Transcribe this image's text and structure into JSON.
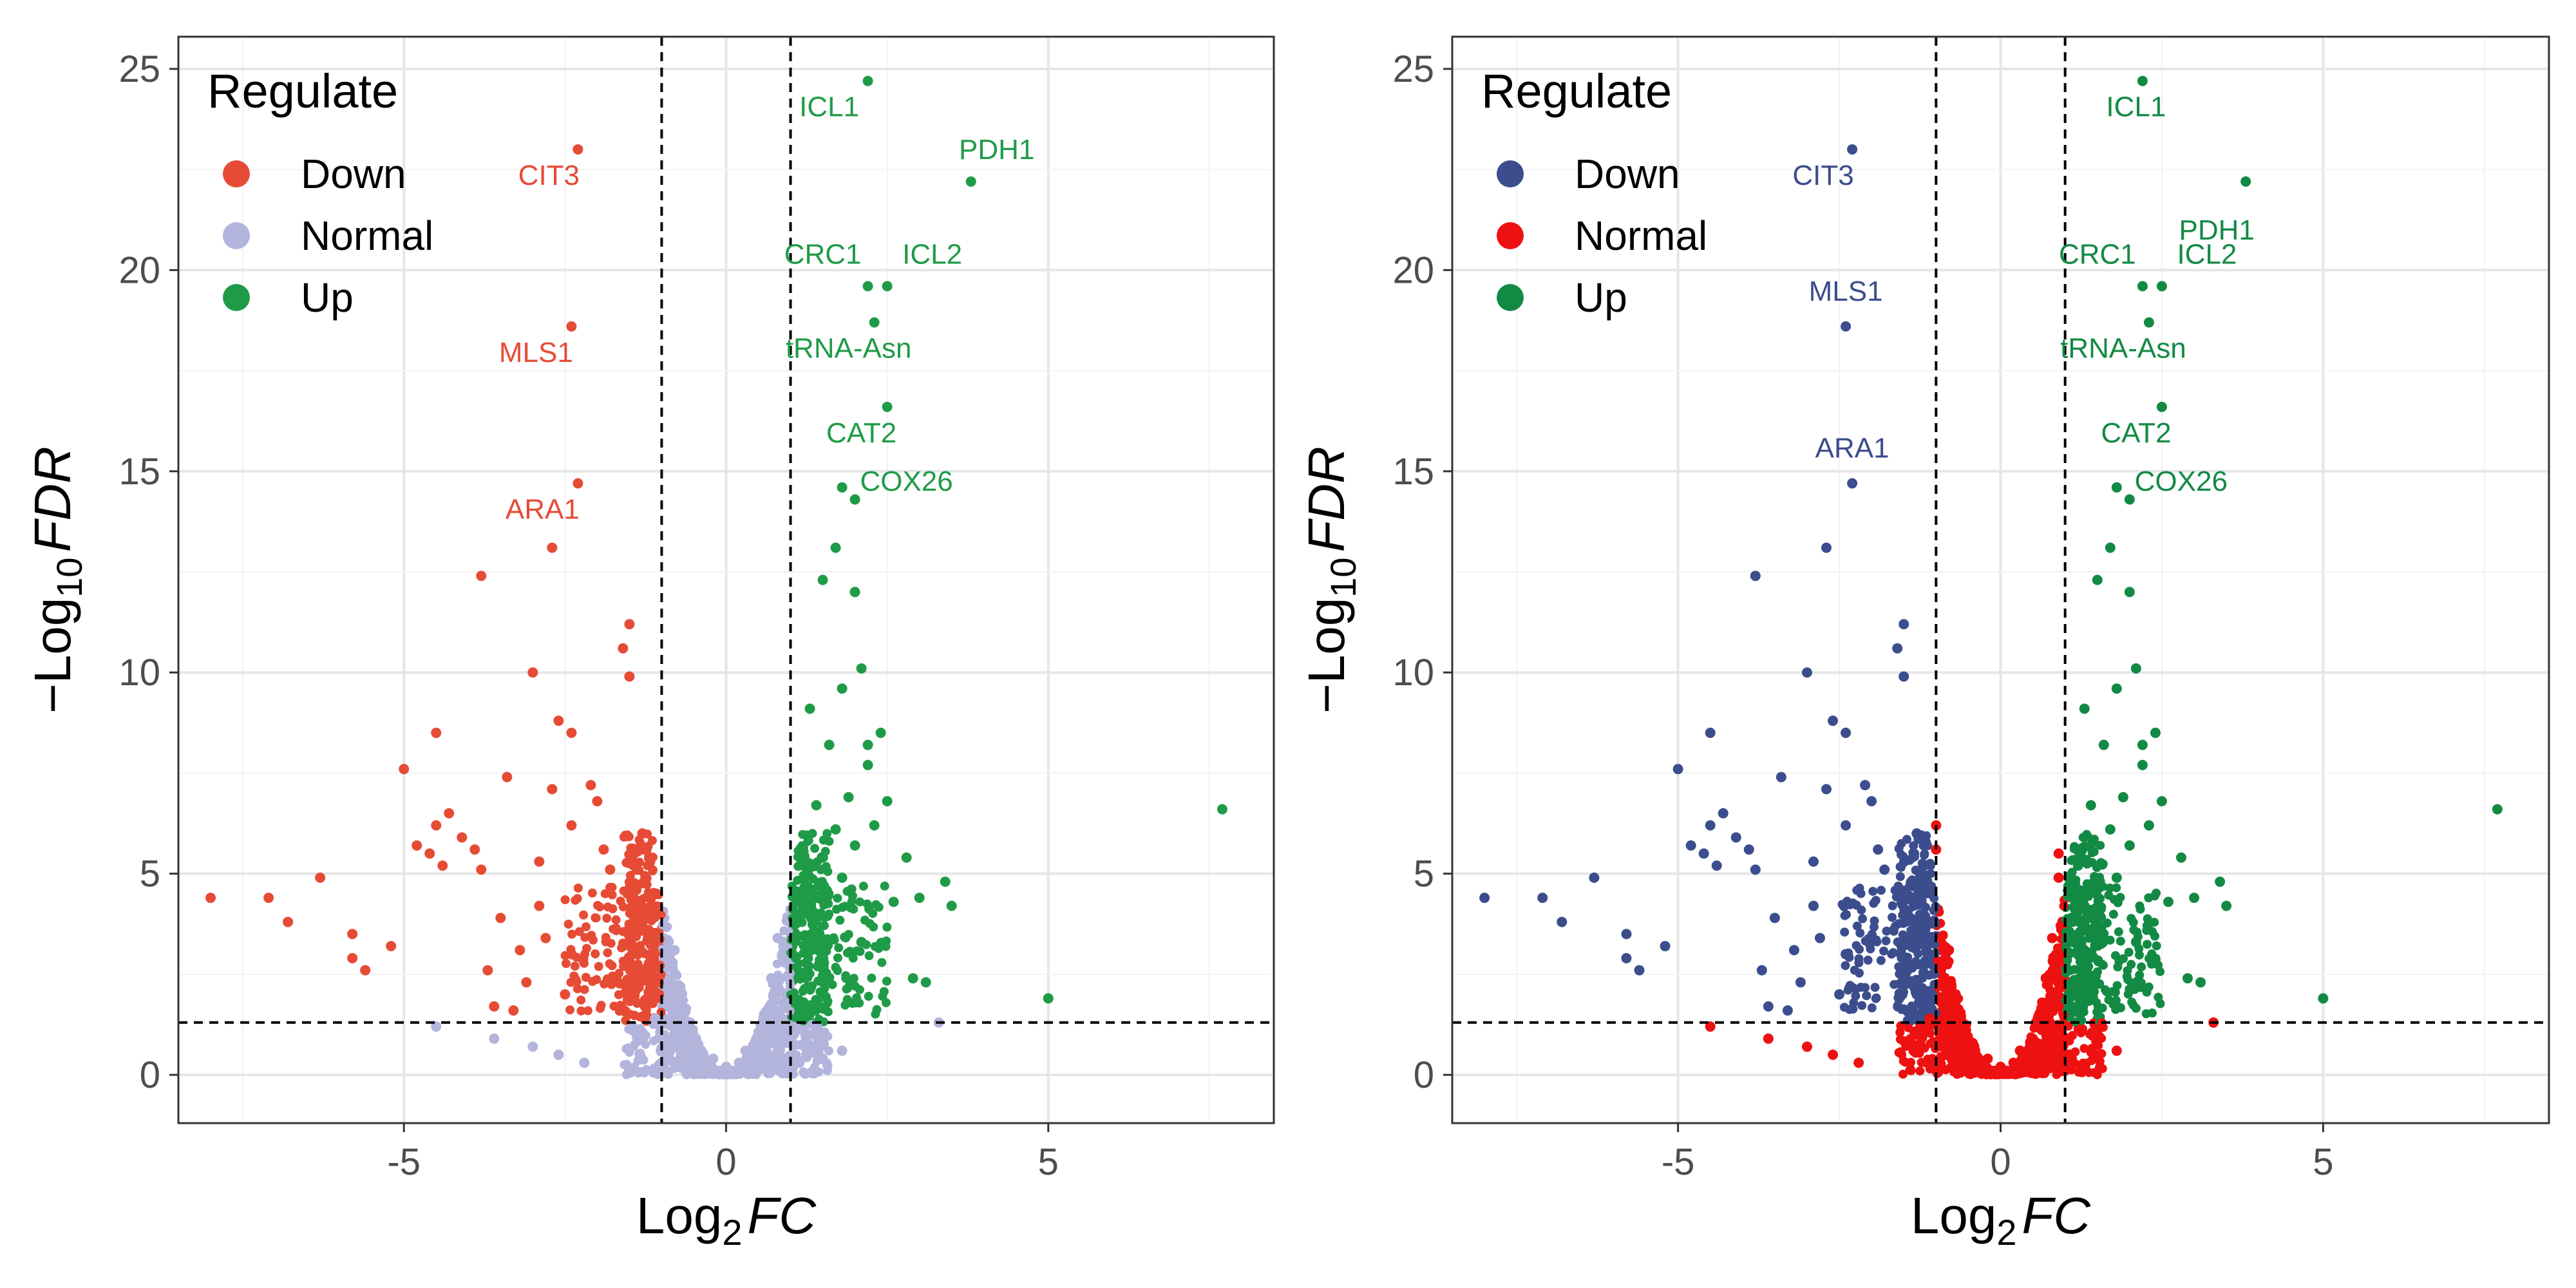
{
  "chart_data": [
    {
      "type": "scatter",
      "subtype": "volcano",
      "x_label_base": "Log",
      "x_label_sub": "2",
      "x_label_var": "FC",
      "y_label_prefix": "−Log",
      "y_label_sub": "10",
      "y_label_var": "FDR",
      "xlim": [
        -8.5,
        8.5
      ],
      "ylim": [
        -1.2,
        25.8
      ],
      "x_ticks": [
        -5,
        0,
        5
      ],
      "x_tick_labels": [
        "-5",
        "0",
        "5"
      ],
      "y_ticks": [
        0,
        5,
        10,
        15,
        20,
        25
      ],
      "y_tick_labels": [
        "0",
        "5",
        "10",
        "15",
        "20",
        "25"
      ],
      "thresholds": {
        "fc": 1,
        "neg_fc": -1,
        "fdr_line": 1.3
      },
      "grid": true,
      "legend": {
        "title": "Regulate",
        "placement": "top-left",
        "entries": [
          {
            "name": "Down",
            "color": "#e64b35"
          },
          {
            "name": "Normal",
            "color": "#b3b4dc"
          },
          {
            "name": "Up",
            "color": "#1f9b47"
          }
        ]
      },
      "colors": {
        "Down": "#e64b35",
        "Normal": "#b3b4dc",
        "Up": "#1f9b47"
      },
      "labeled_genes": [
        {
          "label": "ICL1",
          "x": 2.2,
          "y": 24.7,
          "group": "Up"
        },
        {
          "label": "PDH1",
          "x": 3.8,
          "y": 22.2,
          "group": "Up"
        },
        {
          "label": "CRC1",
          "x": 2.2,
          "y": 19.6,
          "group": "Up"
        },
        {
          "label": "ICL2",
          "x": 2.5,
          "y": 19.6,
          "group": "Up"
        },
        {
          "label": "tRNA-Asn",
          "x": 2.3,
          "y": 18.7,
          "group": "Up"
        },
        {
          "label": "CAT2",
          "x": 2.5,
          "y": 16.6,
          "group": "Up"
        },
        {
          "label": "COX26",
          "x": 1.8,
          "y": 14.6,
          "group": "Up"
        },
        {
          "label": "CIT3",
          "x": -2.3,
          "y": 23.0,
          "group": "Down"
        },
        {
          "label": "MLS1",
          "x": -2.4,
          "y": 18.6,
          "group": "Down"
        },
        {
          "label": "ARA1",
          "x": -2.3,
          "y": 14.7,
          "group": "Down"
        }
      ],
      "points": {
        "Down": [
          [
            -8.0,
            4.4
          ],
          [
            -7.1,
            4.4
          ],
          [
            -6.8,
            3.8
          ],
          [
            -6.3,
            4.9
          ],
          [
            -5.8,
            3.5
          ],
          [
            -5.8,
            2.9
          ],
          [
            -5.6,
            2.6
          ],
          [
            -5.2,
            3.2
          ],
          [
            -5.0,
            7.6
          ],
          [
            -4.8,
            5.7
          ],
          [
            -4.6,
            5.5
          ],
          [
            -4.5,
            8.5
          ],
          [
            -4.5,
            6.2
          ],
          [
            -4.4,
            5.2
          ],
          [
            -4.3,
            6.5
          ],
          [
            -4.1,
            5.9
          ],
          [
            -3.9,
            5.6
          ],
          [
            -3.8,
            12.4
          ],
          [
            -3.8,
            5.1
          ],
          [
            -3.7,
            2.6
          ],
          [
            -3.6,
            1.7
          ],
          [
            -3.5,
            3.9
          ],
          [
            -3.4,
            7.4
          ],
          [
            -3.3,
            1.6
          ],
          [
            -3.2,
            3.1
          ],
          [
            -3.0,
            10.0
          ],
          [
            -2.9,
            5.3
          ],
          [
            -2.7,
            13.1
          ],
          [
            -2.7,
            7.1
          ],
          [
            -2.6,
            8.8
          ],
          [
            -2.4,
            8.5
          ],
          [
            -2.4,
            6.2
          ],
          [
            -2.4,
            3.0
          ],
          [
            -2.1,
            7.2
          ],
          [
            -2.0,
            6.8
          ],
          [
            -1.9,
            5.6
          ],
          [
            -1.6,
            10.6
          ],
          [
            -1.5,
            11.2
          ],
          [
            -1.5,
            9.9
          ],
          [
            -1.8,
            5.1
          ],
          [
            -1.3,
            6.0
          ],
          [
            -1.2,
            3.9
          ],
          [
            -2.9,
            4.2
          ],
          [
            -2.8,
            3.4
          ],
          [
            -3.1,
            2.3
          ],
          [
            -2.5,
            2.0
          ]
        ],
        "Up": [
          [
            1.1,
            3.9
          ],
          [
            1.2,
            4.1
          ],
          [
            1.3,
            3.1
          ],
          [
            1.4,
            6.7
          ],
          [
            1.5,
            12.3
          ],
          [
            1.5,
            4.6
          ],
          [
            1.6,
            8.2
          ],
          [
            1.7,
            13.1
          ],
          [
            1.7,
            6.1
          ],
          [
            1.8,
            9.6
          ],
          [
            1.8,
            4.9
          ],
          [
            1.9,
            6.9
          ],
          [
            2.0,
            12.0
          ],
          [
            2.0,
            5.7
          ],
          [
            2.0,
            14.3
          ],
          [
            2.1,
            10.1
          ],
          [
            2.1,
            3.3
          ],
          [
            2.2,
            7.7
          ],
          [
            2.2,
            8.2
          ],
          [
            2.3,
            6.2
          ],
          [
            2.4,
            8.5
          ],
          [
            2.5,
            6.8
          ],
          [
            2.6,
            4.3
          ],
          [
            2.8,
            5.4
          ],
          [
            2.9,
            2.4
          ],
          [
            3.0,
            4.4
          ],
          [
            3.1,
            2.3
          ],
          [
            3.4,
            4.8
          ],
          [
            3.5,
            4.2
          ],
          [
            5.0,
            1.9
          ],
          [
            7.7,
            6.6
          ],
          [
            1.3,
            9.1
          ],
          [
            1.2,
            5.2
          ]
        ],
        "Normal": [
          [
            -1.3,
            1.0
          ],
          [
            -1.1,
            1.4
          ],
          [
            -0.9,
            0.7
          ],
          [
            -0.8,
            1.3
          ],
          [
            -0.7,
            0.5
          ],
          [
            -0.6,
            0.9
          ],
          [
            -0.5,
            0.3
          ],
          [
            -0.4,
            0.6
          ],
          [
            -0.3,
            0.2
          ],
          [
            -0.2,
            0.4
          ],
          [
            -0.1,
            0.1
          ],
          [
            0.0,
            0.2
          ],
          [
            0.1,
            0.1
          ],
          [
            0.2,
            0.3
          ],
          [
            0.3,
            0.6
          ],
          [
            0.4,
            0.4
          ],
          [
            0.5,
            0.9
          ],
          [
            0.6,
            0.7
          ],
          [
            0.7,
            1.3
          ],
          [
            0.8,
            1.0
          ],
          [
            0.9,
            1.7
          ],
          [
            -0.9,
            2.2
          ],
          [
            -0.8,
            3.1
          ],
          [
            -0.7,
            1.8
          ],
          [
            0.7,
            2.4
          ],
          [
            0.8,
            3.4
          ],
          [
            0.9,
            2.8
          ],
          [
            -3.6,
            0.9
          ],
          [
            -3.0,
            0.7
          ],
          [
            -2.6,
            0.5
          ],
          [
            -2.2,
            0.3
          ],
          [
            -4.5,
            1.2
          ],
          [
            3.3,
            1.3
          ],
          [
            1.8,
            0.6
          ],
          [
            1.5,
            0.4
          ]
        ]
      }
    },
    {
      "type": "scatter",
      "subtype": "volcano",
      "x_label_base": "Log",
      "x_label_sub": "2",
      "x_label_var": "FC",
      "y_label_prefix": "−Log",
      "y_label_sub": "10",
      "y_label_var": "FDR",
      "xlim": [
        -8.5,
        8.5
      ],
      "ylim": [
        -1.2,
        25.8
      ],
      "x_ticks": [
        -5,
        0,
        5
      ],
      "x_tick_labels": [
        "-5",
        "0",
        "5"
      ],
      "y_ticks": [
        0,
        5,
        10,
        15,
        20,
        25
      ],
      "y_tick_labels": [
        "0",
        "5",
        "10",
        "15",
        "20",
        "25"
      ],
      "thresholds": {
        "fc": 1,
        "neg_fc": -1,
        "fdr_line": 1.3
      },
      "grid": true,
      "legend": {
        "title": "Regulate",
        "placement": "top-left",
        "entries": [
          {
            "name": "Down",
            "color": "#3c4d8d"
          },
          {
            "name": "Normal",
            "color": "#ee1111"
          },
          {
            "name": "Up",
            "color": "#138a44"
          }
        ]
      },
      "colors": {
        "Down": "#3c4d8d",
        "Normal": "#ee1111",
        "Up": "#138a44"
      },
      "labeled_genes": [
        {
          "label": "ICL1",
          "x": 2.2,
          "y": 24.7,
          "group": "Up"
        },
        {
          "label": "PDH1",
          "x": 3.8,
          "y": 22.2,
          "group": "Up"
        },
        {
          "label": "CRC1",
          "x": 2.2,
          "y": 19.6,
          "group": "Up"
        },
        {
          "label": "ICL2",
          "x": 2.5,
          "y": 19.6,
          "group": "Up"
        },
        {
          "label": "tRNA-Asn",
          "x": 2.3,
          "y": 18.7,
          "group": "Up"
        },
        {
          "label": "CAT2",
          "x": 2.5,
          "y": 16.6,
          "group": "Up"
        },
        {
          "label": "COX26",
          "x": 1.8,
          "y": 14.6,
          "group": "Up"
        },
        {
          "label": "CIT3",
          "x": -2.3,
          "y": 23.0,
          "group": "Down"
        },
        {
          "label": "MLS1",
          "x": -2.4,
          "y": 18.6,
          "group": "Down"
        },
        {
          "label": "ARA1",
          "x": -2.3,
          "y": 14.7,
          "group": "Down"
        }
      ],
      "points": {
        "Down": [
          [
            -8.0,
            4.4
          ],
          [
            -7.1,
            4.4
          ],
          [
            -6.8,
            3.8
          ],
          [
            -6.3,
            4.9
          ],
          [
            -5.8,
            3.5
          ],
          [
            -5.8,
            2.9
          ],
          [
            -5.6,
            2.6
          ],
          [
            -5.2,
            3.2
          ],
          [
            -5.0,
            7.6
          ],
          [
            -4.8,
            5.7
          ],
          [
            -4.6,
            5.5
          ],
          [
            -4.5,
            8.5
          ],
          [
            -4.5,
            6.2
          ],
          [
            -4.4,
            5.2
          ],
          [
            -4.3,
            6.5
          ],
          [
            -4.1,
            5.9
          ],
          [
            -3.9,
            5.6
          ],
          [
            -3.8,
            12.4
          ],
          [
            -3.8,
            5.1
          ],
          [
            -3.7,
            2.6
          ],
          [
            -3.6,
            1.7
          ],
          [
            -3.5,
            3.9
          ],
          [
            -3.4,
            7.4
          ],
          [
            -3.3,
            1.6
          ],
          [
            -3.2,
            3.1
          ],
          [
            -3.0,
            10.0
          ],
          [
            -2.9,
            5.3
          ],
          [
            -2.7,
            13.1
          ],
          [
            -2.7,
            7.1
          ],
          [
            -2.6,
            8.8
          ],
          [
            -2.4,
            8.5
          ],
          [
            -2.4,
            6.2
          ],
          [
            -2.4,
            3.0
          ],
          [
            -2.1,
            7.2
          ],
          [
            -2.0,
            6.8
          ],
          [
            -1.9,
            5.6
          ],
          [
            -1.6,
            10.6
          ],
          [
            -1.5,
            11.2
          ],
          [
            -1.5,
            9.9
          ],
          [
            -1.8,
            5.1
          ],
          [
            -1.3,
            6.0
          ],
          [
            -1.2,
            3.9
          ],
          [
            -2.9,
            4.2
          ],
          [
            -2.8,
            3.4
          ],
          [
            -3.1,
            2.3
          ],
          [
            -2.5,
            2.0
          ]
        ],
        "Up": [
          [
            1.1,
            3.9
          ],
          [
            1.2,
            4.1
          ],
          [
            1.3,
            3.1
          ],
          [
            1.4,
            6.7
          ],
          [
            1.5,
            12.3
          ],
          [
            1.5,
            4.6
          ],
          [
            1.6,
            8.2
          ],
          [
            1.7,
            13.1
          ],
          [
            1.7,
            6.1
          ],
          [
            1.8,
            9.6
          ],
          [
            1.8,
            4.9
          ],
          [
            1.9,
            6.9
          ],
          [
            2.0,
            12.0
          ],
          [
            2.0,
            5.7
          ],
          [
            2.0,
            14.3
          ],
          [
            2.1,
            10.1
          ],
          [
            2.1,
            3.3
          ],
          [
            2.2,
            7.7
          ],
          [
            2.2,
            8.2
          ],
          [
            2.3,
            6.2
          ],
          [
            2.4,
            8.5
          ],
          [
            2.5,
            6.8
          ],
          [
            2.6,
            4.3
          ],
          [
            2.8,
            5.4
          ],
          [
            2.9,
            2.4
          ],
          [
            3.0,
            4.4
          ],
          [
            3.1,
            2.3
          ],
          [
            3.4,
            4.8
          ],
          [
            3.5,
            4.2
          ],
          [
            5.0,
            1.9
          ],
          [
            7.7,
            6.6
          ],
          [
            1.3,
            9.1
          ],
          [
            1.2,
            5.2
          ]
        ],
        "Normal": [
          [
            -1.3,
            1.0
          ],
          [
            -1.1,
            1.4
          ],
          [
            -0.9,
            0.7
          ],
          [
            -0.8,
            1.3
          ],
          [
            -0.7,
            0.5
          ],
          [
            -0.6,
            0.9
          ],
          [
            -0.5,
            0.3
          ],
          [
            -0.4,
            0.6
          ],
          [
            -0.3,
            0.2
          ],
          [
            -0.2,
            0.4
          ],
          [
            -0.1,
            0.1
          ],
          [
            0.0,
            0.2
          ],
          [
            0.1,
            0.1
          ],
          [
            0.2,
            0.3
          ],
          [
            0.3,
            0.6
          ],
          [
            0.4,
            0.4
          ],
          [
            0.5,
            0.9
          ],
          [
            0.6,
            0.7
          ],
          [
            0.7,
            1.3
          ],
          [
            0.8,
            1.0
          ],
          [
            0.9,
            1.7
          ],
          [
            -0.9,
            2.2
          ],
          [
            -0.8,
            3.1
          ],
          [
            -0.7,
            1.8
          ],
          [
            0.7,
            2.4
          ],
          [
            0.8,
            3.4
          ],
          [
            0.9,
            2.8
          ],
          [
            -3.6,
            0.9
          ],
          [
            -3.0,
            0.7
          ],
          [
            -2.6,
            0.5
          ],
          [
            -2.2,
            0.3
          ],
          [
            -4.5,
            1.2
          ],
          [
            3.3,
            1.3
          ],
          [
            1.8,
            0.6
          ],
          [
            1.5,
            0.4
          ],
          [
            -1.0,
            5.6
          ],
          [
            -1.0,
            6.2
          ],
          [
            0.9,
            5.5
          ],
          [
            0.9,
            4.9
          ]
        ]
      }
    }
  ]
}
